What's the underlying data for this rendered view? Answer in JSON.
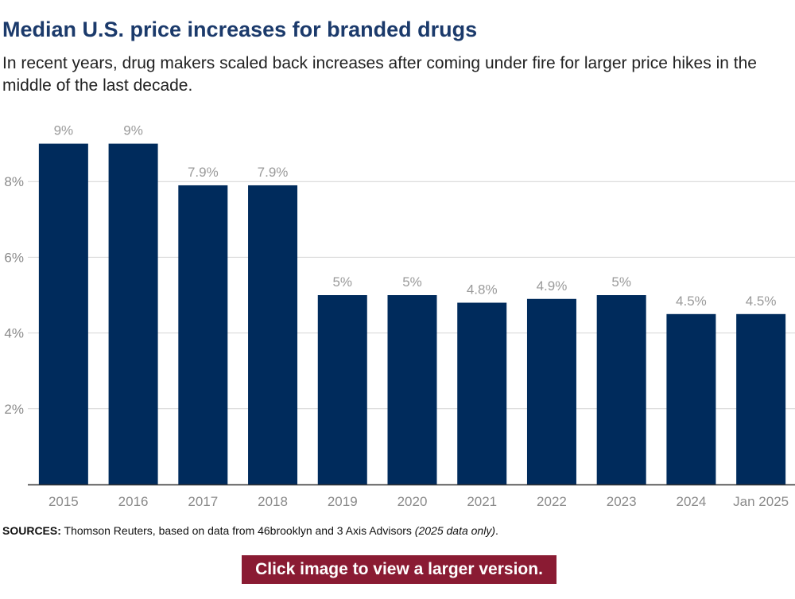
{
  "title": "Median U.S. price increases for branded drugs",
  "subtitle": "In recent years, drug makers scaled back increases after coming under fire for larger price hikes in the middle of the last decade.",
  "sources": {
    "label": "SOURCES:",
    "text": " Thomson Reuters, based on data from 46brooklyn and 3 Axis Advisors ",
    "note": "(2025 data only)",
    "end": "."
  },
  "cta_label": "Click image to view a larger version.",
  "colors": {
    "bar": "#002b5c",
    "title": "#1b3a6b",
    "cta": "#8a1b33",
    "grid": "#d4d4d4"
  },
  "chart_data": {
    "type": "bar",
    "title": "Median U.S. price increases for branded drugs",
    "xlabel": "",
    "ylabel": "",
    "categories": [
      "2015",
      "2016",
      "2017",
      "2018",
      "2019",
      "2020",
      "2021",
      "2022",
      "2023",
      "2024",
      "Jan 2025"
    ],
    "values": [
      9,
      9,
      7.9,
      7.9,
      5,
      5,
      4.8,
      4.9,
      5,
      4.5,
      4.5
    ],
    "data_labels": [
      "9%",
      "9%",
      "7.9%",
      "7.9%",
      "5%",
      "5%",
      "4.8%",
      "4.9%",
      "5%",
      "4.5%",
      "4.5%"
    ],
    "y_ticks": [
      2,
      4,
      6,
      8
    ],
    "y_tick_labels": [
      "2%",
      "4%",
      "6%",
      "8%"
    ],
    "ylim": [
      0,
      9.5
    ],
    "grid": true,
    "legend": "none"
  }
}
